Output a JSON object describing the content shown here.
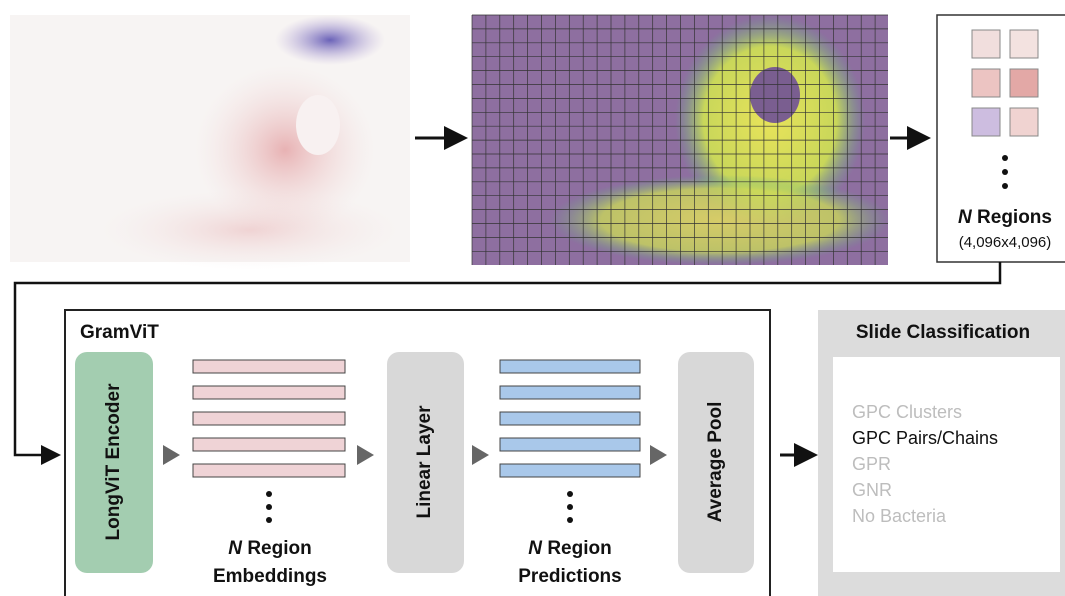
{
  "regions": {
    "symbol": "N",
    "label": "Regions",
    "size": "(4,096x4,096)"
  },
  "model": {
    "title": "GramViT",
    "encoder": "LongViT Encoder",
    "embeddings": {
      "symbol": "N",
      "line1": "Region",
      "line2": "Embeddings"
    },
    "linear": "Linear Layer",
    "predictions": {
      "symbol": "N",
      "line1": "Region",
      "line2": "Predictions"
    },
    "pool": "Average Pool"
  },
  "classification": {
    "title": "Slide Classification",
    "classes": [
      "GPC Clusters",
      "GPC Pairs/Chains",
      "GPR",
      "GNR",
      "No Bacteria"
    ],
    "highlighted_index": 1
  }
}
